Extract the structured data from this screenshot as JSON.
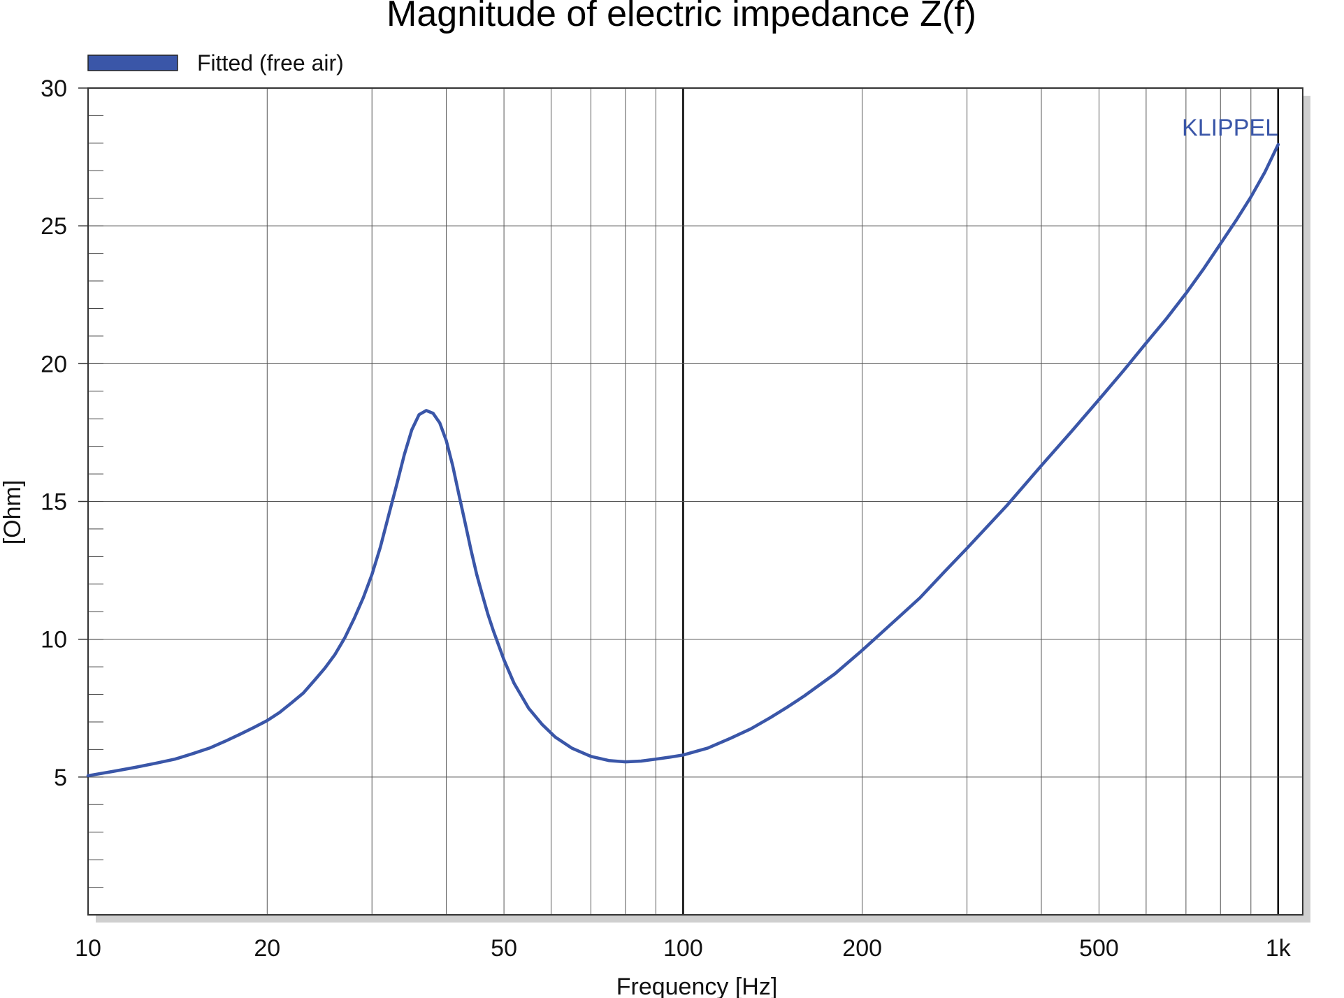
{
  "chart_data": {
    "type": "line",
    "title": "Magnitude of electric impedance Z(f)",
    "xlabel": "Frequency [Hz]",
    "ylabel": "[Ohm]",
    "x_scale": "log",
    "xlim": [
      10,
      1100
    ],
    "ylim": [
      0,
      30
    ],
    "x_ticks": [
      10,
      20,
      50,
      100,
      200,
      500,
      1000
    ],
    "x_tick_labels": [
      "10",
      "20",
      "50",
      "100",
      "200",
      "500",
      "1k"
    ],
    "y_ticks": [
      5,
      10,
      15,
      20,
      25,
      30
    ],
    "y_tick_labels": [
      "5",
      "10",
      "15",
      "20",
      "25",
      "30"
    ],
    "grid": true,
    "legend_position": "top-left",
    "watermark": "KLIPPEL",
    "colors": {
      "series": "#3a56a8",
      "watermark": "#3a56a8",
      "grid": "#555555",
      "shadow": "#cfcfcf"
    },
    "series": [
      {
        "name": "Fitted (free air)",
        "x": [
          10,
          11,
          12,
          13,
          14,
          15,
          16,
          17,
          18,
          19,
          20,
          21,
          22,
          23,
          24,
          25,
          26,
          27,
          28,
          29,
          30,
          31,
          32,
          33,
          34,
          35,
          36,
          37,
          38,
          39,
          40,
          41,
          42,
          43,
          44,
          45,
          46,
          47,
          48,
          50,
          52,
          55,
          58,
          61,
          65,
          70,
          75,
          80,
          85,
          90,
          95,
          100,
          110,
          120,
          130,
          140,
          150,
          160,
          180,
          200,
          225,
          250,
          275,
          300,
          350,
          400,
          450,
          500,
          550,
          600,
          650,
          700,
          750,
          800,
          850,
          900,
          950,
          1000
        ],
        "y": [
          5.05,
          5.2,
          5.35,
          5.5,
          5.65,
          5.85,
          6.05,
          6.3,
          6.55,
          6.8,
          7.05,
          7.35,
          7.7,
          8.05,
          8.5,
          8.95,
          9.45,
          10.05,
          10.75,
          11.5,
          12.35,
          13.35,
          14.5,
          15.6,
          16.7,
          17.6,
          18.15,
          18.3,
          18.2,
          17.85,
          17.2,
          16.3,
          15.25,
          14.25,
          13.25,
          12.35,
          11.6,
          10.9,
          10.3,
          9.25,
          8.4,
          7.5,
          6.9,
          6.45,
          6.05,
          5.75,
          5.6,
          5.55,
          5.58,
          5.65,
          5.72,
          5.8,
          6.05,
          6.4,
          6.75,
          7.15,
          7.55,
          7.95,
          8.75,
          9.6,
          10.6,
          11.5,
          12.45,
          13.3,
          14.85,
          16.3,
          17.55,
          18.7,
          19.75,
          20.75,
          21.65,
          22.55,
          23.45,
          24.35,
          25.2,
          26.05,
          26.95,
          27.95
        ]
      }
    ]
  }
}
